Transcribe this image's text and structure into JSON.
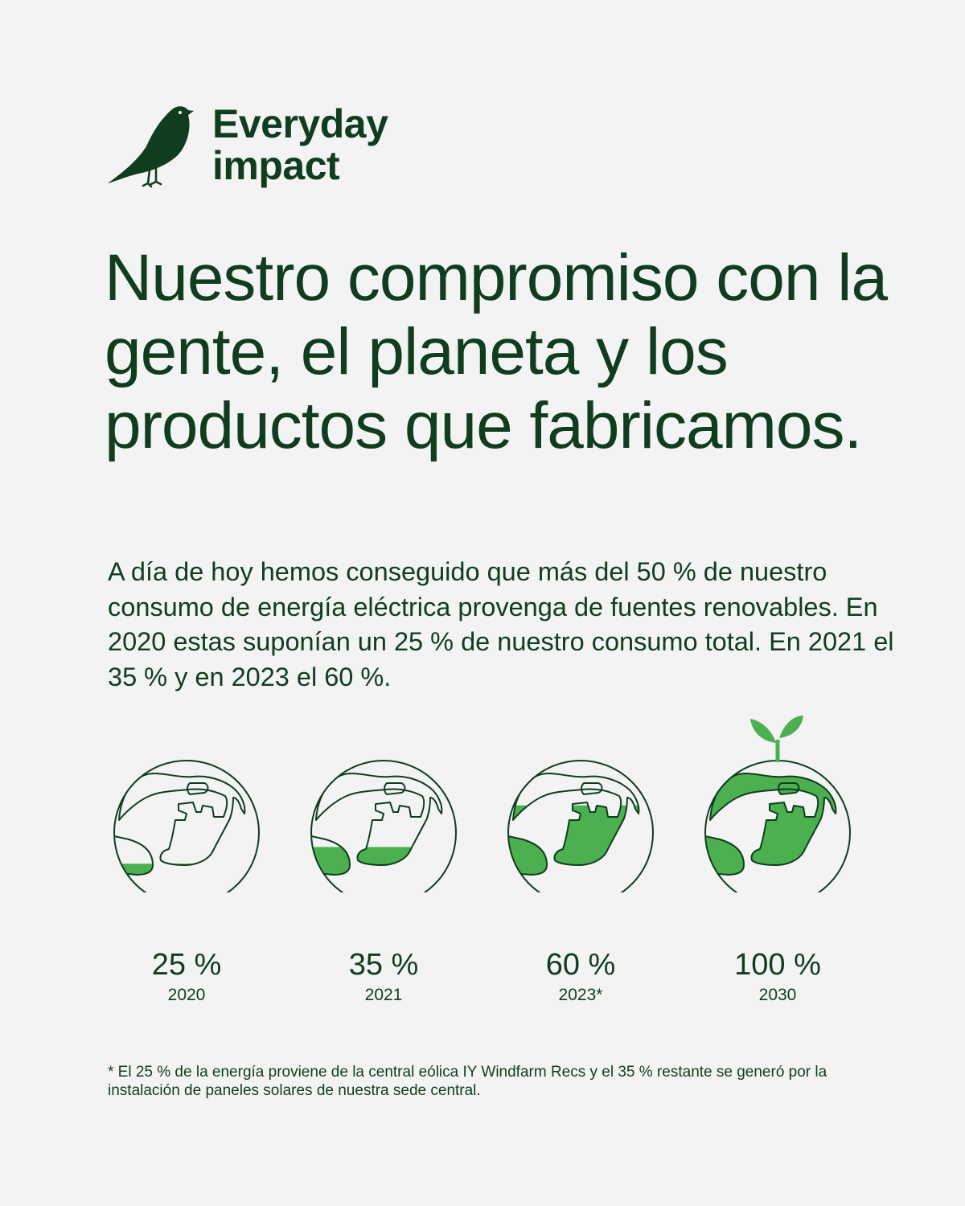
{
  "brand": {
    "line1": "Everyday",
    "line2": "impact",
    "logo_icon": "bird-icon"
  },
  "headline": "Nuestro compromiso con la gente, el planeta y los productos que fabricamos.",
  "intro": "A día de hoy hemos conseguido que más del 50 % de nuestro consumo de energía eléctrica provenga de fuentes renovables. En 2020 estas suponían un 25 % de nuestro consumo total. En 2021 el 35 % y en 2023 el 60 %.",
  "colors": {
    "dark_green": "#0f3d1e",
    "fill_green": "#4caf50",
    "background": "#f3f3f3"
  },
  "globes": [
    {
      "percent_label": "25 %",
      "year": "2020",
      "fill_fraction": 0.25,
      "sprout": false
    },
    {
      "percent_label": "35 %",
      "year": "2021",
      "fill_fraction": 0.35,
      "sprout": false
    },
    {
      "percent_label": "60 %",
      "year": "2023*",
      "fill_fraction": 0.6,
      "sprout": false
    },
    {
      "percent_label": "100 %",
      "year": "2030",
      "fill_fraction": 1.0,
      "sprout": true
    }
  ],
  "footnote": "* El 25 % de la energía proviene de la central eólica IY Windfarm Recs y el 35 % restante se generó por la instalación de paneles solares de nuestra sede central."
}
